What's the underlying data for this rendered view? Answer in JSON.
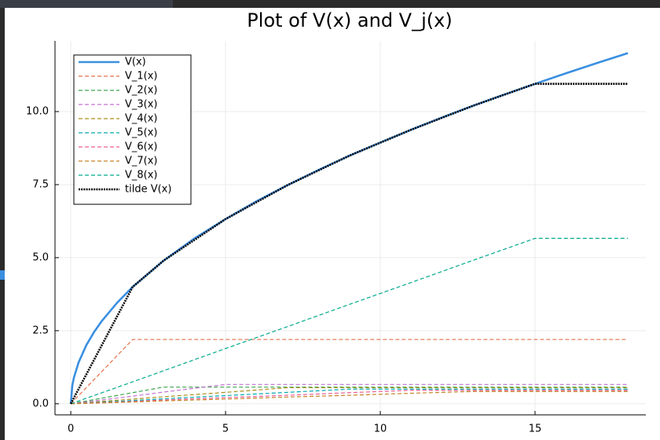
{
  "chart_data": {
    "type": "line",
    "title": "Plot of V(x) and V_j(x)",
    "xlim": [
      -0.51,
      18.58
    ],
    "ylim": [
      -0.38,
      12.42
    ],
    "xticks": [
      0,
      5,
      10,
      15
    ],
    "yticks": [
      {
        "value": 0,
        "label": "0.0"
      },
      2.5,
      {
        "value": 5,
        "label": "5.0"
      },
      7.5,
      {
        "value": 10,
        "label": "10.0"
      }
    ],
    "grid": true,
    "legend": "top-left",
    "series": [
      {
        "name": "V(x)",
        "color": "#3b8fe0",
        "style": "solid",
        "x": [
          0,
          0.05,
          0.1,
          0.25,
          0.5,
          0.75,
          1,
          1.5,
          2,
          3,
          4,
          5,
          6,
          7,
          8,
          9,
          10,
          11,
          12,
          13,
          14,
          15,
          16,
          17,
          18
        ],
        "values": [
          0,
          0.63,
          0.89,
          1.41,
          2,
          2.45,
          2.83,
          3.46,
          4,
          4.9,
          5.66,
          6.32,
          6.93,
          7.48,
          8,
          8.49,
          8.94,
          9.38,
          9.8,
          10.2,
          10.58,
          10.95,
          11.31,
          11.66,
          12
        ]
      },
      {
        "name": "V_1(x)",
        "color": "#e36f47",
        "style": "dashed",
        "x": [
          0,
          2,
          3,
          5,
          7,
          9,
          11,
          13,
          15,
          18
        ],
        "values": [
          0,
          2.2,
          2.2,
          2.2,
          2.2,
          2.2,
          2.2,
          2.2,
          2.2,
          2.2
        ]
      },
      {
        "name": "V_2(x)",
        "color": "#3ea44e",
        "style": "dashed",
        "x": [
          0,
          2,
          3,
          5,
          7,
          9,
          11,
          13,
          15,
          18
        ],
        "values": [
          0,
          0.38,
          0.57,
          0.57,
          0.57,
          0.57,
          0.57,
          0.57,
          0.57,
          0.57
        ]
      },
      {
        "name": "V_3(x)",
        "color": "#c371d2",
        "style": "dashed",
        "x": [
          0,
          2,
          3,
          5,
          7,
          9,
          11,
          13,
          15,
          18
        ],
        "values": [
          0,
          0.26,
          0.4,
          0.66,
          0.66,
          0.66,
          0.66,
          0.66,
          0.66,
          0.66
        ]
      },
      {
        "name": "V_4(x)",
        "color": "#ac8e18",
        "style": "dashed",
        "x": [
          0,
          2,
          3,
          5,
          7,
          9,
          11,
          13,
          15,
          18
        ],
        "values": [
          0,
          0.16,
          0.24,
          0.39,
          0.55,
          0.55,
          0.55,
          0.55,
          0.55,
          0.55
        ]
      },
      {
        "name": "V_5(x)",
        "color": "#00aaae",
        "style": "dashed",
        "x": [
          0,
          2,
          3,
          5,
          7,
          9,
          11,
          13,
          15,
          18
        ],
        "values": [
          0,
          0.11,
          0.17,
          0.28,
          0.39,
          0.5,
          0.5,
          0.5,
          0.5,
          0.5
        ]
      },
      {
        "name": "V_6(x)",
        "color": "#ed5e93",
        "style": "dashed",
        "x": [
          0,
          2,
          3,
          5,
          7,
          9,
          11,
          13,
          15,
          18
        ],
        "values": [
          0,
          0.08,
          0.13,
          0.21,
          0.29,
          0.38,
          0.46,
          0.46,
          0.46,
          0.46
        ]
      },
      {
        "name": "V_7(x)",
        "color": "#c68225",
        "style": "dashed",
        "x": [
          0,
          2,
          3,
          5,
          7,
          9,
          11,
          13,
          15,
          18
        ],
        "values": [
          0,
          0.06,
          0.1,
          0.16,
          0.23,
          0.29,
          0.36,
          0.42,
          0.42,
          0.42
        ]
      },
      {
        "name": "V_8(x)",
        "color": "#00a98d",
        "style": "dashed",
        "x": [
          0,
          2,
          3,
          5,
          7,
          9,
          11,
          13,
          15,
          18
        ],
        "values": [
          0,
          0.75,
          1.13,
          1.89,
          2.64,
          3.4,
          4.15,
          4.91,
          5.66,
          5.66
        ]
      },
      {
        "name": "tilde V(x)",
        "color": "#000000",
        "style": "dotted",
        "x": [
          0,
          2,
          3,
          5,
          7,
          9,
          11,
          13,
          15,
          18
        ],
        "values": [
          0,
          4,
          4.9,
          6.32,
          7.48,
          8.49,
          9.38,
          10.2,
          10.95,
          10.95
        ]
      }
    ]
  }
}
